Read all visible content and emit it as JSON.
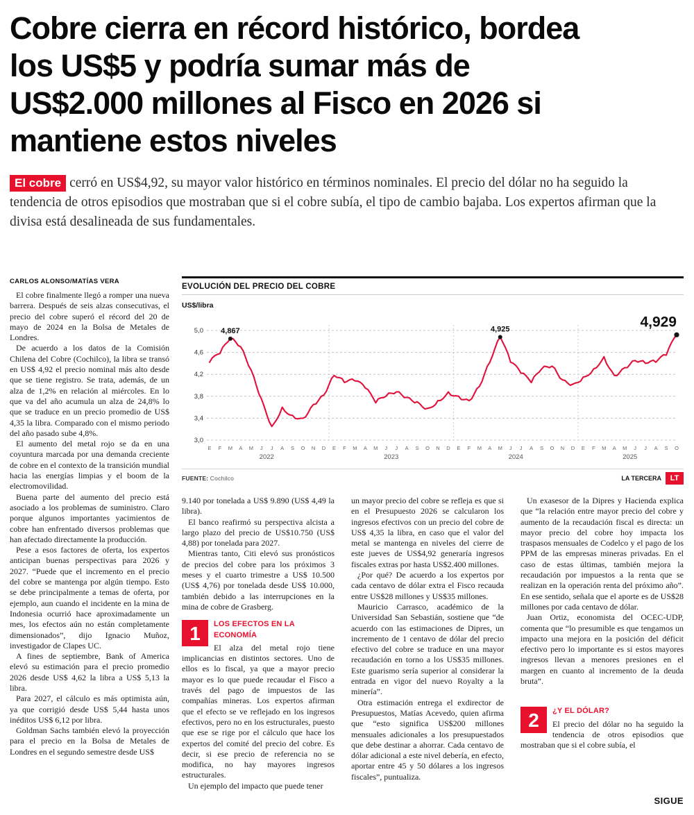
{
  "headline_lines": [
    "Cobre cierra en récord histórico, bordea",
    "los US$5 y podría sumar más de",
    "US$2.000 millones al Fisco en 2026 si",
    "mantiene estos niveles"
  ],
  "lede": {
    "kicker": "El cobre",
    "text": "cerró en US$4,92, su mayor valor histórico en términos nominales. El precio del dólar no ha seguido la tendencia de otros episodios que mostraban que si el cobre subía, el tipo de cambio bajaba. Los expertos afirman que la divisa está desalineada de sus fundamentales."
  },
  "byline": "CARLOS ALONSO/MATÍAS VERA",
  "article": {
    "col1": [
      "El cobre finalmente llegó a romper una nueva barrera. Después de seis alzas consecutivas, el precio del cobre superó el récord del 20 de mayo de 2024 en la Bolsa de Metales de Londres.",
      "De acuerdo a los datos de la Comisión Chilena del Cobre (Cochilco), la libra se transó en US$ 4,92 el precio nominal más alto desde que se tiene registro. Se trata, además, de un alza de 1,2% en relación al miércoles. En lo que va del año acumula un alza de 24,8% lo que se traduce en un precio promedio de US$ 4,35 la libra. Comparado con el mismo periodo del año pasado sube 4,8%.",
      "El aumento del metal rojo se da en una coyuntura marcada por una demanda creciente de cobre en el contexto de la transición mundial hacia las energías limpias y el boom de la electromovilidad.",
      "Buena parte del aumento del precio está asociado a los problemas de suministro. Claro porque algunos importantes yacimientos de cobre han enfrentado diversos problemas que han afectado directamente la producción.",
      "Pese a esos factores de oferta, los expertos anticipan buenas perspectivas para 2026 y 2027. “Puede que el incremento en el precio del cobre se mantenga por algún tiempo. Esto se debe principalmente a temas de oferta, por ejemplo, aun cuando el incidente en la mina de Indonesia ocurrió hace aproximadamente un mes, los efectos aún no están completamente dimensionados”, dijo Ignacio Muñoz, investigador de Clapes UC.",
      "A fines de septiembre, Bank of America elevó su estimación para el precio promedio 2026 desde US$ 4,62 la libra a US$ 5,13 la libra.",
      "Para 2027, el cálculo es más optimista aún, ya que corrigió desde US$ 5,44 hasta unos inéditos US$ 6,12 por libra.",
      "Goldman Sachs también elevó la proyección para el precio en la Bolsa de Metales de Londres en el segundo semestre desde US$"
    ],
    "col2_intro": [
      "9.140 por tonelada a US$ 9.890 (US$ 4,49 la libra).",
      "El banco reafirmó su perspectiva alcista a largo plazo del precio de US$10.750 (US$ 4,88) por tonelada para 2027.",
      "Mientras tanto, Citi elevó sus pronósticos de precios del cobre para los próximos 3 meses y el cuarto trimestre a US$ 10.500 (US$ 4,76) por tonelada desde US$ 10.000, también debido a las interrupciones en la mina de cobre de Grasberg."
    ],
    "section1": {
      "number": "1",
      "title": "LOS EFECTOS EN LA ECONOMÍA",
      "body": [
        "El alza del metal rojo tiene implicancias en distintos sectores. Uno de ellos es lo fiscal, ya que a mayor precio mayor es lo que puede recaudar el Fisco a través del pago de impuestos de las compañías mineras. Los expertos afirman que el efecto se ve reflejado en los ingresos efectivos, pero no en los estructurales, puesto que ese se rige por el cálculo que hace los expertos del comité del precio del cobre. Es decir, si ese precio de referencia no se modifica, no hay mayores ingresos estructurales.",
        "Un ejemplo del impacto que puede tener"
      ]
    },
    "col3": [
      "un mayor precio del cobre se refleja es que si en el Presupuesto 2026 se calcularon los ingresos efectivos con un precio del cobre de US$ 4,35 la libra, en caso que el valor del metal se mantenga en niveles del cierre de este jueves de US$4,92 generaría ingresos fiscales extras por hasta US$2.400 millones.",
      "¿Por qué? De acuerdo a los expertos por cada centavo de dólar extra el Fisco recauda entre US$28 millones y US$35 millones.",
      "Mauricio Carrasco, académico de la Universidad San Sebastián, sostiene que “de acuerdo con las estimaciones de Dipres, un incremento de 1 centavo de dólar del precio efectivo del cobre se traduce en una mayor recaudación en torno a los US$35 millones. Este guarismo sería superior al considerar la entrada en vigor del nuevo Royalty a la minería”.",
      "Otra estimación entrega el exdirector de Presupuestos, Matías Acevedo, quien afirma que “esto significa US$200 millones mensuales adicionales a los presupuestados que debe destinar a ahorrar. Cada centavo de dólar adicional a este nivel debería, en efecto, aportar entre 45 y 50 dólares a los ingresos fiscales”, puntualiza."
    ],
    "col4": [
      "Un exasesor de la Dipres y Hacienda explica que “la relación entre mayor precio del cobre y aumento de la recaudación fiscal es directa: un mayor precio del cobre hoy impacta los traspasos mensuales de Codelco y el pago de los PPM de las empresas mineras privadas. En el caso de estas últimas, también mejora la recaudación por impuestos a la renta que se realizan en la operación renta del próximo año”. En ese sentido, señala que el aporte es de US$28 millones por cada centavo de dólar.",
      "Juan Ortiz, economista del OCEC-UDP, comenta que “lo presumible es que tengamos un impacto una mejora en la posición del déficit efectivo pero lo importante es si estos mayores ingresos llevan a menores presiones en el margen en cuanto al incremento de la deuda bruta”."
    ],
    "section2": {
      "number": "2",
      "title": "¿Y EL DÓLAR?",
      "body": [
        "El precio del dólar no ha seguido la tendencia de otros episodios que mostraban que si el cobre subía, el"
      ]
    },
    "continues": "SIGUE"
  },
  "chart": {
    "header": "EVOLUCIÓN DEL PRECIO DEL COBRE",
    "unit": "US$/libra",
    "source_label": "FUENTE:",
    "source": "Cochilco",
    "credit": "LA TERCERA",
    "logo": "LT"
  },
  "colors": {
    "accent_red": "#e8112d",
    "chart_line": "#e0113a"
  },
  "chart_data": {
    "type": "line",
    "title": "EVOLUCIÓN DEL PRECIO DEL COBRE",
    "ylabel": "US$/libra",
    "ylim": [
      3.0,
      5.0
    ],
    "yticks": [
      5.0,
      4.6,
      4.2,
      3.8,
      3.4,
      3.0
    ],
    "ytick_labels": [
      "5,0",
      "4,6",
      "4,2",
      "3,8",
      "3,4",
      "3,0"
    ],
    "month_labels": [
      "E",
      "F",
      "M",
      "A",
      "M",
      "J",
      "J",
      "A",
      "S",
      "O",
      "N",
      "D",
      "E",
      "F",
      "M",
      "A",
      "M",
      "J",
      "J",
      "A",
      "S",
      "O",
      "N",
      "D",
      "E",
      "F",
      "M",
      "A",
      "M",
      "J",
      "J",
      "A",
      "S",
      "O",
      "N",
      "D",
      "E",
      "F",
      "M",
      "A",
      "M",
      "J",
      "J",
      "A",
      "S",
      "O"
    ],
    "years": [
      {
        "label": "2022",
        "months": 12
      },
      {
        "label": "2023",
        "months": 12
      },
      {
        "label": "2024",
        "months": 12
      },
      {
        "label": "2025",
        "months": 10
      }
    ],
    "values": [
      4.42,
      4.58,
      4.85,
      4.7,
      4.28,
      3.75,
      3.25,
      3.6,
      3.45,
      3.4,
      3.65,
      3.82,
      4.18,
      4.05,
      4.08,
      3.95,
      3.68,
      3.8,
      3.88,
      3.78,
      3.7,
      3.58,
      3.72,
      3.88,
      3.8,
      3.72,
      3.98,
      4.42,
      4.88,
      4.42,
      4.22,
      4.05,
      4.3,
      4.35,
      4.1,
      4.02,
      4.15,
      4.3,
      4.52,
      4.18,
      4.32,
      4.45,
      4.4,
      4.42,
      4.55,
      4.92
    ],
    "annotations": [
      {
        "index": 2,
        "label": "4,867",
        "emphasis": false
      },
      {
        "index": 28,
        "label": "4,925",
        "emphasis": false
      },
      {
        "index": 45,
        "label": "4,929",
        "emphasis": true
      }
    ],
    "line_color": "#e0113a",
    "grid": "dashed-horizontal",
    "legend": "none",
    "source": "Cochilco"
  }
}
